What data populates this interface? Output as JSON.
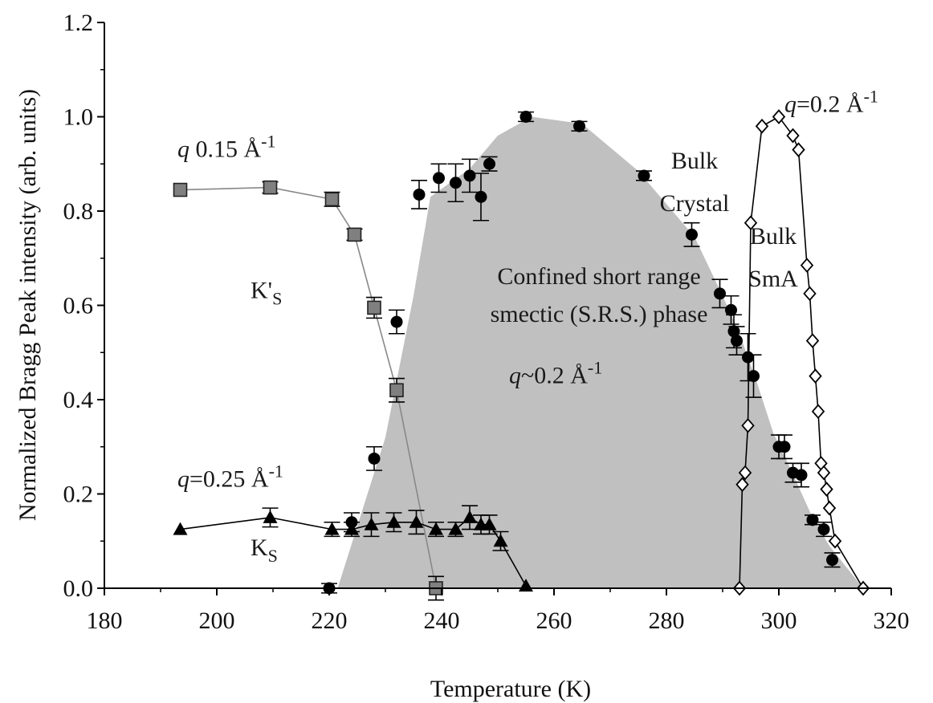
{
  "chart_data": {
    "type": "scatter",
    "title": "",
    "xlabel": "Temperature (K)",
    "ylabel": "Normalized Bragg Peak intensity (arb. units)",
    "xlim": [
      180,
      320
    ],
    "ylim": [
      0.0,
      1.2
    ],
    "xticks": [
      "180",
      "200",
      "220",
      "240",
      "260",
      "280",
      "300",
      "320"
    ],
    "yticks": [
      "0.0",
      "0.2",
      "0.4",
      "0.6",
      "0.8",
      "1.0",
      "1.2"
    ],
    "grid": false,
    "legend": "none",
    "shaded_region": {
      "fill": "#c0c0c0",
      "points": [
        [
          221.5,
          0.0
        ],
        [
          230,
          0.32
        ],
        [
          235,
          0.62
        ],
        [
          238,
          0.83
        ],
        [
          245,
          0.89
        ],
        [
          250,
          0.96
        ],
        [
          256,
          1.0
        ],
        [
          265,
          0.985
        ],
        [
          275,
          0.885
        ],
        [
          285,
          0.745
        ],
        [
          290,
          0.62
        ],
        [
          293,
          0.54
        ],
        [
          296,
          0.44
        ],
        [
          299,
          0.33
        ],
        [
          302,
          0.255
        ],
        [
          306,
          0.15
        ],
        [
          309,
          0.09
        ],
        [
          315,
          0.0
        ]
      ]
    },
    "series": [
      {
        "marker": "square",
        "color": "#808080",
        "line_color": "#888888",
        "connected": true,
        "x": [
          193.5,
          209.5,
          220.5,
          224.5,
          228.0,
          232.0,
          239.0
        ],
        "y": [
          0.845,
          0.85,
          0.825,
          0.75,
          0.595,
          0.42,
          0.0
        ],
        "yerr": [
          0,
          0.012,
          0.015,
          0.012,
          0.022,
          0.025,
          0.025
        ]
      },
      {
        "marker": "triangle",
        "color": "#000000",
        "line_color": "#000000",
        "connected": true,
        "x": [
          193.5,
          209.5,
          220.5,
          224.0,
          227.5,
          231.5,
          235.5,
          239.0,
          242.5,
          245.0,
          247.0,
          248.5,
          250.5,
          255.0
        ],
        "y": [
          0.125,
          0.15,
          0.125,
          0.125,
          0.135,
          0.14,
          0.14,
          0.125,
          0.125,
          0.15,
          0.135,
          0.135,
          0.1,
          0.005
        ],
        "yerr": [
          0,
          0.02,
          0.015,
          0.015,
          0.025,
          0.02,
          0.025,
          0.015,
          0.015,
          0.025,
          0.02,
          0.02,
          0.02,
          0
        ]
      },
      {
        "marker": "circle",
        "color": "#000000",
        "connected": false,
        "x": [
          220.0,
          224.0,
          228.0,
          232.0,
          236.0,
          239.5,
          242.5,
          245.0,
          247.0,
          248.5,
          255.0,
          264.5,
          276.0,
          284.5,
          289.5,
          291.5,
          292.0,
          292.5,
          294.5,
          295.5,
          300.0,
          301.0,
          302.5,
          304.0,
          306.0,
          308.0,
          309.5
        ],
        "y": [
          0.0,
          0.14,
          0.275,
          0.565,
          0.835,
          0.87,
          0.86,
          0.875,
          0.83,
          0.9,
          1.0,
          0.98,
          0.875,
          0.75,
          0.625,
          0.59,
          0.545,
          0.525,
          0.49,
          0.45,
          0.3,
          0.3,
          0.245,
          0.24,
          0.145,
          0.125,
          0.06
        ],
        "yerr": [
          0.01,
          0.02,
          0.025,
          0.025,
          0.03,
          0.03,
          0.04,
          0.035,
          0.05,
          0.015,
          0.01,
          0.01,
          0.01,
          0.025,
          0.03,
          0.03,
          0.035,
          0.03,
          0.05,
          0.045,
          0.025,
          0.025,
          0.02,
          0.025,
          0.01,
          0.015,
          0.015
        ]
      },
      {
        "marker": "diamond",
        "color": "#ffffff",
        "stroke": "#000000",
        "line_color": "#000000",
        "connected": true,
        "x": [
          293.0,
          293.5,
          294.0,
          294.5,
          295.0,
          297.0,
          300.0,
          302.5,
          303.5,
          305.0,
          305.5,
          306.0,
          306.5,
          307.0,
          307.5,
          308.0,
          308.5,
          309.0,
          310.0,
          315.0
        ],
        "y": [
          0.0,
          0.22,
          0.245,
          0.345,
          0.775,
          0.98,
          1.0,
          0.96,
          0.93,
          0.685,
          0.625,
          0.525,
          0.45,
          0.375,
          0.265,
          0.245,
          0.21,
          0.17,
          0.1,
          0.0
        ],
        "yerr": []
      }
    ],
    "annotations": {
      "q015": {
        "q": "q",
        "text": " 0.15 Å",
        "sup": "-1",
        "x": 193,
        "y": 0.915
      },
      "kprime": {
        "main": "K'",
        "sub": "S",
        "x": 206,
        "y": 0.615
      },
      "q025": {
        "q": "q",
        "text": "=0.25 Å",
        "sup": "-1",
        "x": 193,
        "y": 0.215
      },
      "ks": {
        "main": "K",
        "sub": "S",
        "x": 206,
        "y": 0.07
      },
      "srs1": {
        "text": "Confined short range",
        "x": 268,
        "y": 0.645
      },
      "srs2": {
        "text": "smectic (S.R.S.) phase",
        "x": 268,
        "y": 0.565
      },
      "q02mid": {
        "q": "q",
        "text": "~0.2 Å",
        "sup": "-1",
        "x": 252,
        "y": 0.435
      },
      "bulkcrystal1": {
        "text": "Bulk",
        "x": 285,
        "y": 0.89
      },
      "bulkcrystal2": {
        "text": "Crystal",
        "x": 285,
        "y": 0.8
      },
      "bulksma1": {
        "text": "Bulk",
        "x": 299,
        "y": 0.73
      },
      "bulksma2": {
        "text": "SmA",
        "x": 299,
        "y": 0.64
      },
      "q02top": {
        "q": "q",
        "text": "=0.2 Å",
        "sup": "-1",
        "x": 301,
        "y": 1.01
      }
    }
  }
}
